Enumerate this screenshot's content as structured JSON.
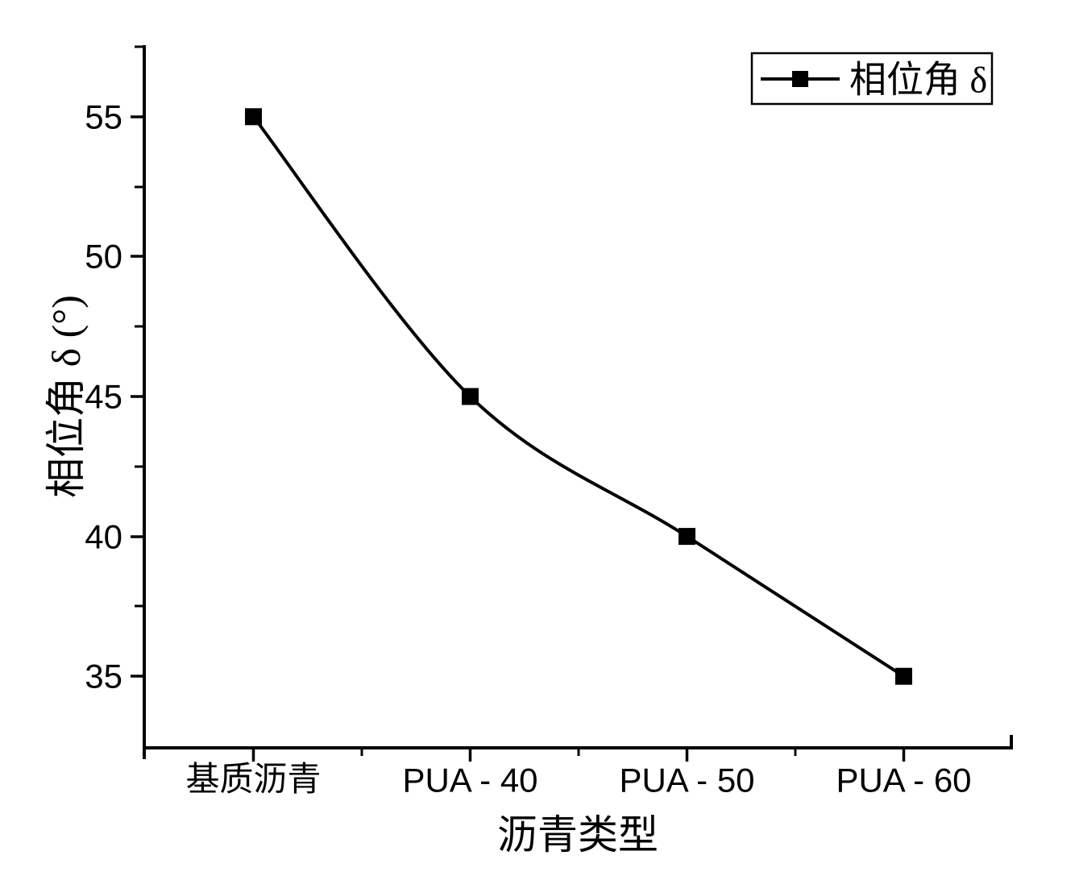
{
  "page": {
    "background": "#ffffff",
    "foreground": "#000000"
  },
  "chart_data": {
    "type": "line",
    "title": "",
    "categories": [
      "基质沥青",
      "PUA - 40",
      "PUA - 50",
      "PUA - 60"
    ],
    "series": [
      {
        "name": "相位角 δ",
        "values": [
          55,
          45,
          40,
          35
        ],
        "color": "#000000",
        "marker": "filled-square",
        "line_style": "spline"
      }
    ],
    "xlabel": "沥青类型",
    "ylabel": "相位角 δ (°)",
    "ylim": [
      32.5,
      57.5
    ],
    "yticks": [
      35,
      40,
      45,
      50,
      55
    ],
    "y_minor_step": 2.5,
    "x_minor_ticks": "between-categories",
    "grid": false,
    "legend": {
      "label": "相位角 δ",
      "position": "top-right",
      "border": true
    }
  }
}
